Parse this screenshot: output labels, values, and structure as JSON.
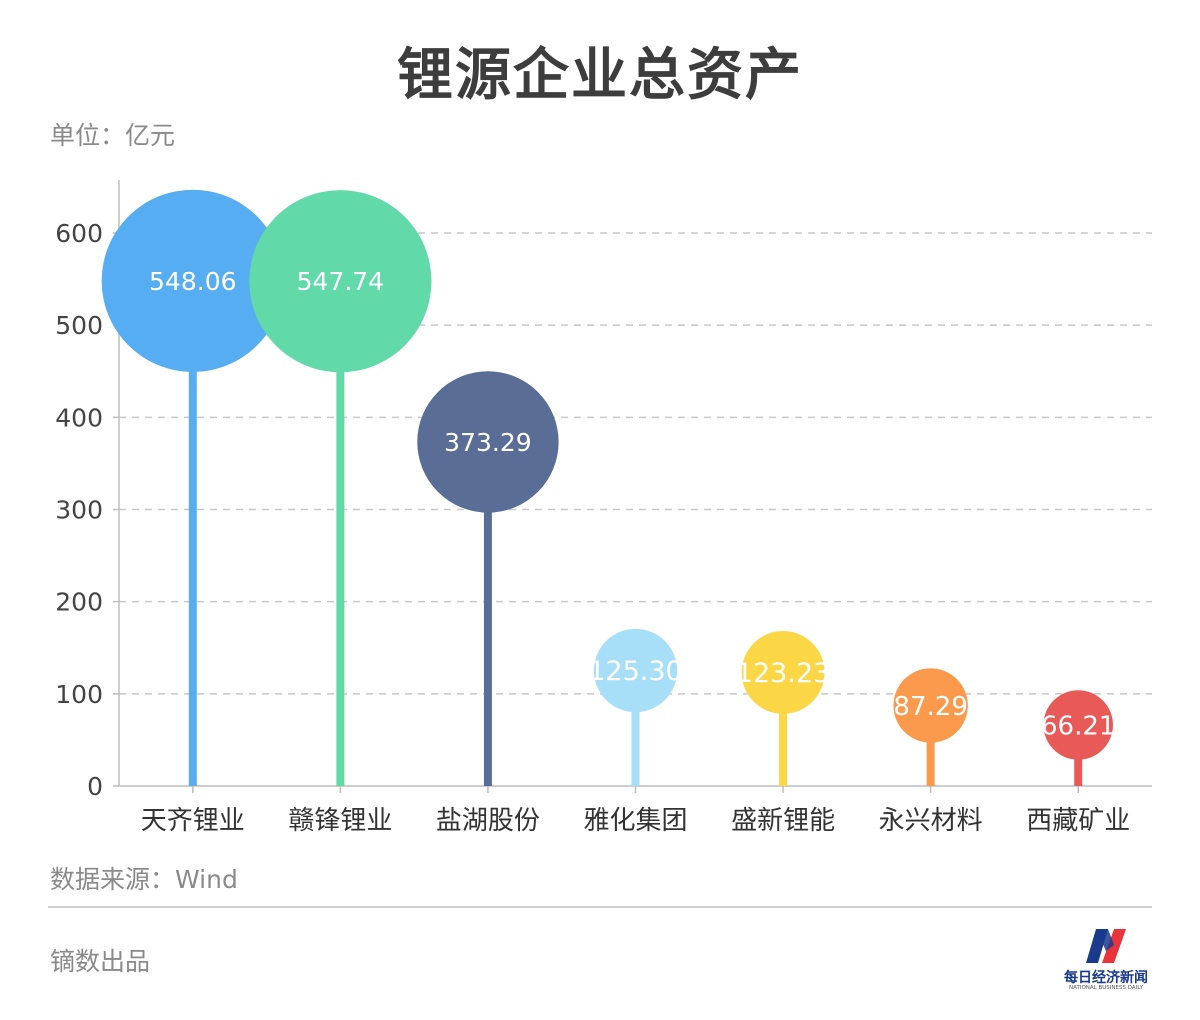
{
  "title": "锂源企业总资产",
  "unit_label": "单位：亿元",
  "source_label": "数据来源：Wind",
  "producer_label": "镝数出品",
  "logo": {
    "name": "每日经济新闻",
    "name_en": "NATIONAL BUSINESS DAILY",
    "colors": [
      "#1a3b8c",
      "#e8343a"
    ]
  },
  "chart_data": {
    "type": "bar",
    "style": "lollipop-bubble",
    "categories": [
      "天齐锂业",
      "赣锋锂业",
      "盐湖股份",
      "雅化集团",
      "盛新锂能",
      "永兴材料",
      "西藏矿业"
    ],
    "values": [
      548.06,
      547.74,
      373.29,
      125.3,
      123.23,
      87.29,
      66.21
    ],
    "value_labels": [
      "548.06",
      "547.74",
      "373.29",
      "125.30",
      "123.23",
      "87.29",
      "66.21"
    ],
    "colors": [
      "#57adf2",
      "#62d9a9",
      "#5a6d96",
      "#a8dff8",
      "#fbd645",
      "#fb9a4c",
      "#e85a57"
    ],
    "title": "锂源企业总资产",
    "ylabel": "单位：亿元",
    "ylim": [
      0,
      600
    ],
    "yticks": [
      "0",
      "100",
      "200",
      "300",
      "400",
      "500",
      "600"
    ],
    "grid": true,
    "legend": "none"
  }
}
